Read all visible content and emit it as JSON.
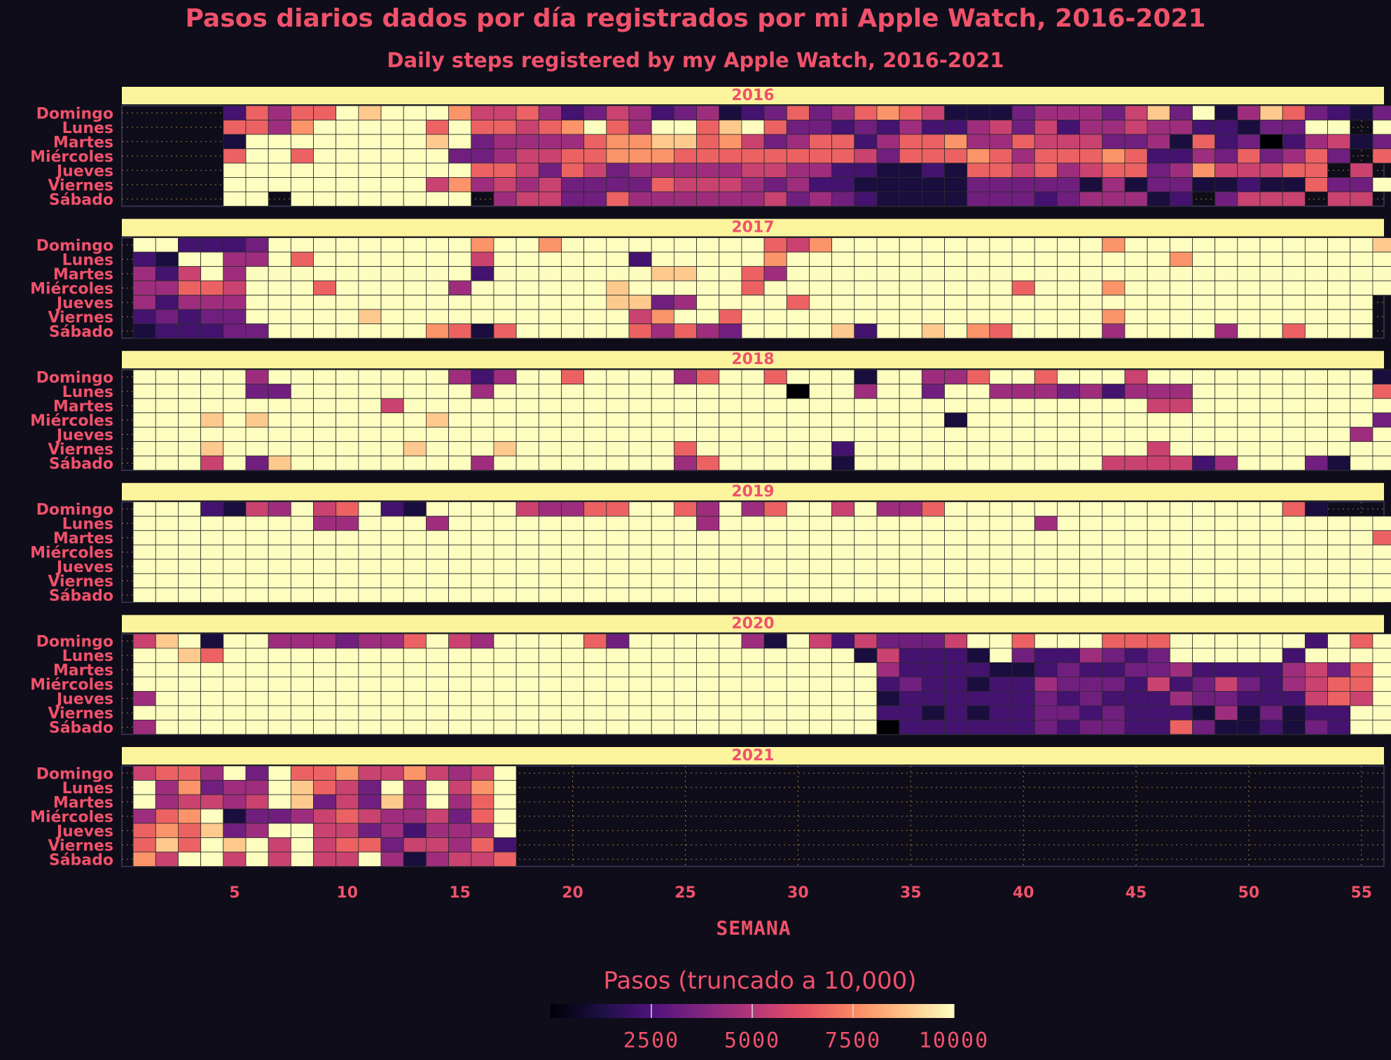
{
  "chart_data": {
    "type": "heatmap",
    "title": "Pasos diarios dados por día registrados por mi Apple Watch, 2016-2021",
    "subtitle": "Daily steps registered by my Apple Watch, 2016-2021",
    "xlabel": "SEMANA",
    "x_ticks": [
      5,
      10,
      15,
      20,
      25,
      30,
      35,
      40,
      45,
      50,
      55
    ],
    "xlim": [
      0,
      56
    ],
    "y_categories": [
      "Domingo",
      "Lunes",
      "Martes",
      "Miércoles",
      "Jueves",
      "Viernes",
      "Sábado"
    ],
    "legend_title": "Pasos (truncado a 10,000)",
    "legend_ticks": [
      "2500",
      "5000",
      "7500",
      "10000"
    ],
    "value_range": [
      0,
      10000
    ],
    "colormap": "magma",
    "grid": true,
    "legend_position": "bottom",
    "colors": {
      "background": "#0f0d1a",
      "text": "#f0516b",
      "strip": "#fcf49c",
      "grid": "#e0a84a"
    },
    "note_values": "Each row string encodes one cell per week starting at week 1; digit d means daily steps of about d*1000 (9 = 9000-10000+), '.' means no data.",
    "panels": [
      {
        "year": "2016",
        "rows": [
          "....26466989997556423542341236346765111344435839148632139",
          "....66479999969665679649968963323242245352445442213399.9.",
          "....19999999989344446778867534662466744655533416230245131",
          "....69969999993345566777666666665366676466676224363463.63",
          "....9999999999966536534444455442211216656456634755566.5.8",
          "....99999999957454533336555434221111133333141331121163399.",
          "....99.99999999.4553364444445343211113332344412.3555.55.6"
        ]
      },
      {
        "year": "2017",
        "rows": [
          "99222399999999979979999999996579999999999997999999999998",
          "21994496999999959999992999997999999999999999997999999999",
          "42594999999999929999999889964999999999999999999999999999",
          "44665999699999499999989999969999999999969997999999999999",
          "4244499999999999999998834999969999999999999999999999999",
          "2323399999899999999999579969999999999999999799999999999",
          "1222339999999761699999646439999829989769999499994996999"
        ]
      },
      {
        "year": "2018",
        "rows": [
          "99999499999999424996999946996999199446996999599999999991",
          "99999339999999949999999999999099499399444342444999999996",
          "99999999999599999999999999999999999999999999955999999999",
          "99989899999998999999999999999999999919999999999999999993",
          "99999999999999999999999999999999999999999999999999999949",
          "99989999999989998999999969999992999999999999959999999999",
          "99959389999999949999999946999991999999999995555249993199"
        ]
      },
      {
        "year": "2019",
        "rows": [
          "99921549569219999544669964946995944699999999999999961",
          "99999999449994999999999994999999999999994999999999999999",
          "99999999999999999999999999999999999999999999999999999996",
          "99999999999999999999999999999999999999999999999999999999",
          "99999999999999999999999999999999999999999999999999999999",
          "99999999999999999999999999999999999999999999999999999999",
          "99999999999999999999999999999999999999999999999999999999"
        ]
      },
      {
        "year": "2020",
        "rows": [
          "58919944434469549999639999941952533359969996669999992969",
          "99869999999999999999999999999999152221932243239999929999",
          "99999999999999999999999999999999942222112322334222245369",
          "99999999999999999999999999999999923221224333252353245669",
          "49999999999999999999999999999999912222223232224332225659",
          "99999999999999999999999999999999922121223323222141312299",
          "49999999999999999999999999999999902222223233226311213299"
        ]
      },
      {
        "year": "2021",
        "rows": [
          "56649396675575459",
          "94734498653949579",
          "94554598353849469",
          "46791334565445369",
          "67683499553424449",
          "68698959566355462",
          "75995959559414556"
        ]
      }
    ]
  }
}
